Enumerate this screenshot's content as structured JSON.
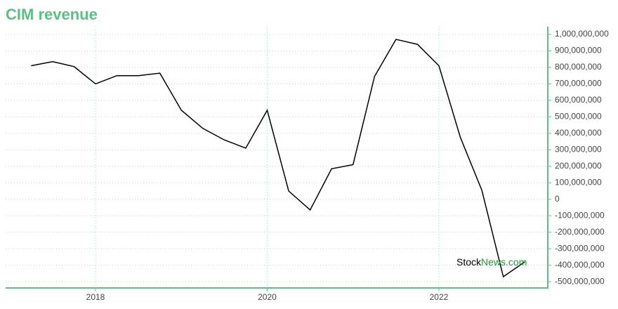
{
  "chart_data": {
    "type": "line",
    "title": "CIM revenue",
    "x": [
      2017.25,
      2017.5,
      2017.75,
      2018.0,
      2018.25,
      2018.5,
      2018.75,
      2019.0,
      2019.25,
      2019.5,
      2019.75,
      2020.0,
      2020.25,
      2020.5,
      2020.75,
      2021.0,
      2021.25,
      2021.5,
      2021.75,
      2022.0,
      2022.25,
      2022.5,
      2022.75,
      2023.0
    ],
    "series": [
      {
        "name": "CIM revenue",
        "color": "#000000",
        "values": [
          810000000,
          835000000,
          805000000,
          700000000,
          750000000,
          750000000,
          765000000,
          540000000,
          430000000,
          360000000,
          310000000,
          540000000,
          50000000,
          -65000000,
          185000000,
          210000000,
          745000000,
          970000000,
          940000000,
          810000000,
          375000000,
          55000000,
          -470000000,
          -380000000
        ]
      }
    ],
    "xlim": [
      2016.953,
      2023.268
    ],
    "xticks": [
      2018,
      2020,
      2022
    ],
    "ylim": [
      -538000000,
      1047000000
    ],
    "yticks": [
      {
        "value": 1000000000,
        "label": "1,000,000,000"
      },
      {
        "value": 900000000,
        "label": "900,000,000"
      },
      {
        "value": 800000000,
        "label": "800,000,000"
      },
      {
        "value": 700000000,
        "label": "700,000,000"
      },
      {
        "value": 600000000,
        "label": "600,000,000"
      },
      {
        "value": 500000000,
        "label": "500,000,000"
      },
      {
        "value": 400000000,
        "label": "400,000,000"
      },
      {
        "value": 300000000,
        "label": "300,000,000"
      },
      {
        "value": 200000000,
        "label": "200,000,000"
      },
      {
        "value": 100000000,
        "label": "100,000,000"
      },
      0,
      {
        "value": -100000000,
        "label": "-100,000,000"
      },
      {
        "value": -200000000,
        "label": "-200,000,000"
      },
      {
        "value": -300000000,
        "label": "-300,000,000"
      },
      {
        "value": -400000000,
        "label": "-400,000,000"
      },
      {
        "value": -500000000,
        "label": "-500,000,000"
      }
    ],
    "grid": true,
    "watermark": {
      "part1": "Stock",
      "part2": "News.com"
    }
  }
}
